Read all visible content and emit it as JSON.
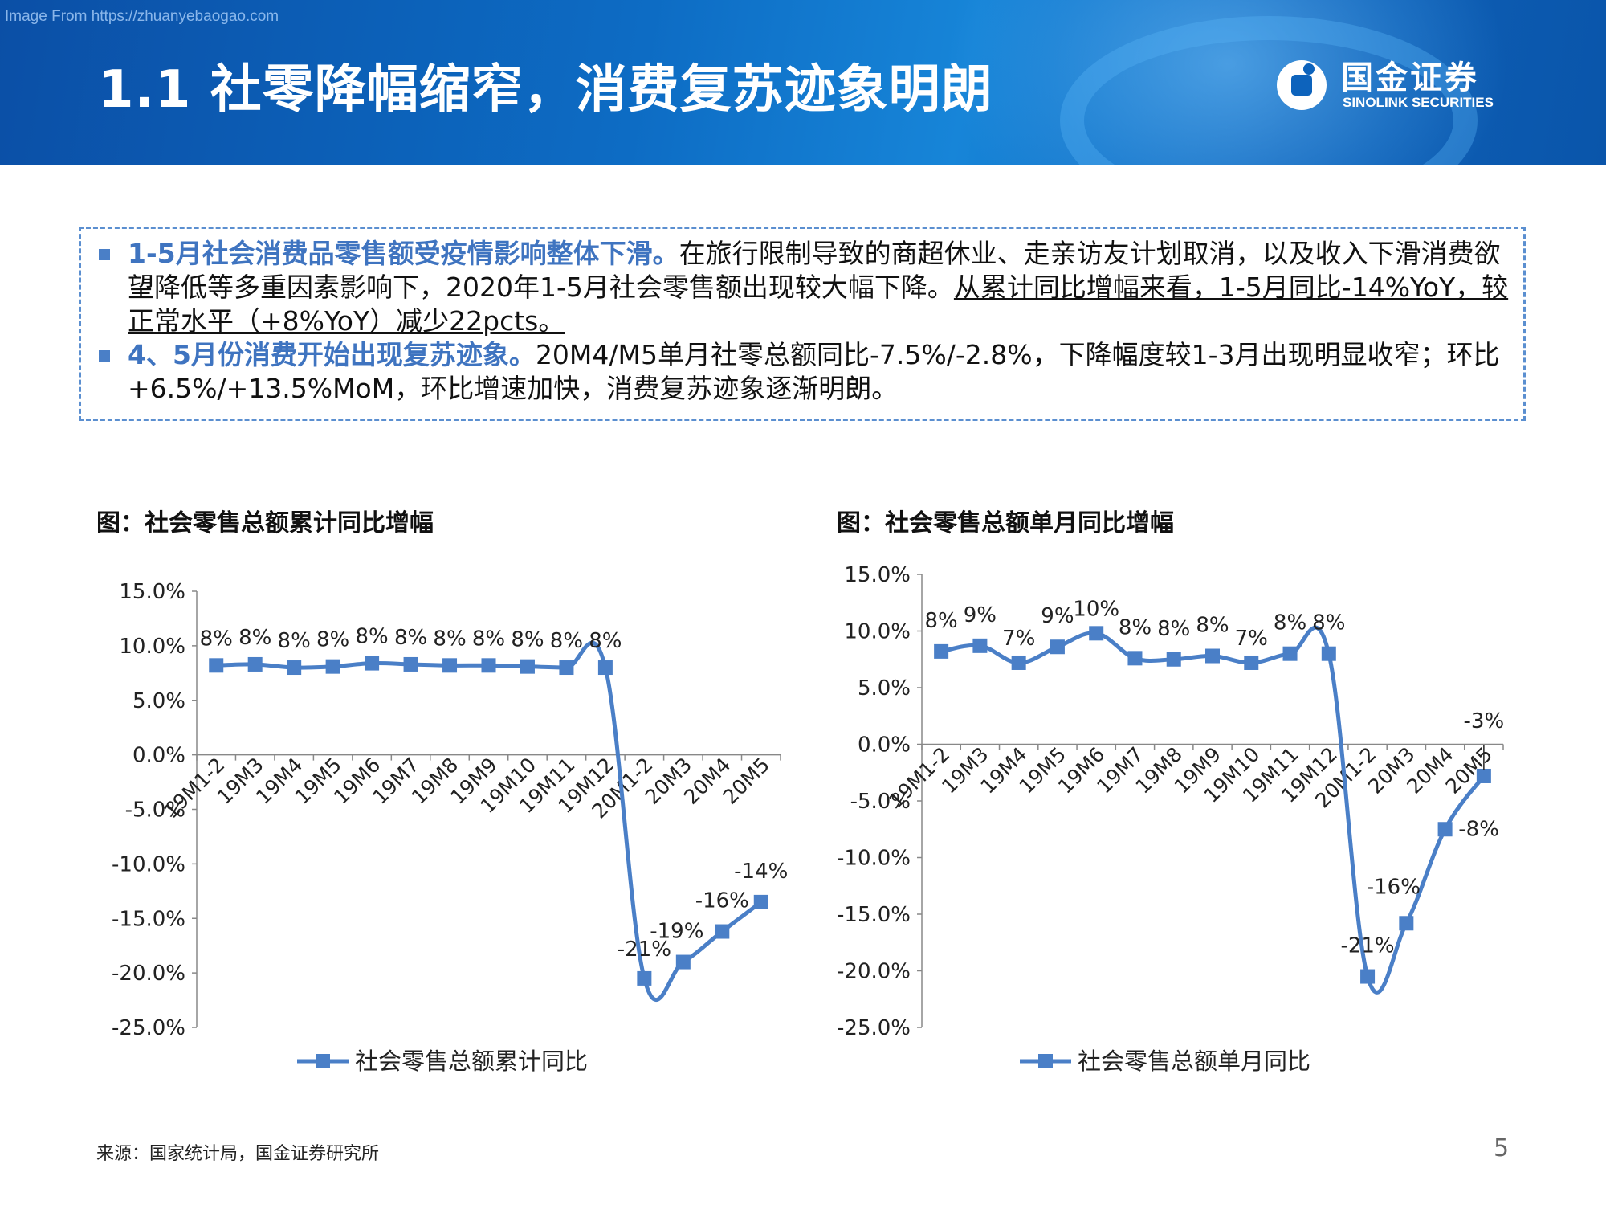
{
  "header": {
    "watermark": "Image From https://zhuanyebaogao.com",
    "title": "1.1 社零降幅缩窄，消费复苏迹象明朗",
    "brand_cn": "国金证券",
    "brand_en": "SINOLINK SECURITIES",
    "brand_logo_icon": "sinolink-logo-icon"
  },
  "summary": {
    "bullet1": {
      "lead": "1-5月社会消费品零售额受疫情影响整体下滑。",
      "body": "在旅行限制导致的商超休业、走亲访友计划取消，以及收入下滑消费欲望降低等多重因素影响下，2020年1-5月社会零售额出现较大幅下降。",
      "underlined": "从累计同比增幅来看，1-5月同比-14%YoY，较正常水平（+8%YoY）减少22pcts。"
    },
    "bullet2": {
      "lead": "4、5月份消费开始出现复苏迹象。",
      "body": "20M4/M5单月社零总额同比-7.5%/-2.8%，下降幅度较1-3月出现明显收窄；环比+6.5%/+13.5%MoM，环比增速加快，消费复苏迹象逐渐明朗。"
    }
  },
  "chart_left_title": "图：社会零售总额累计同比增幅",
  "chart_right_title": "图：社会零售总额单月同比增幅",
  "source": "来源：国家统计局，国金证券研究所",
  "page_number": "5",
  "colors": {
    "series": "#4a7fc7",
    "header_dark": "#0b4fa6",
    "highlight": "#3f74c0",
    "border": "#5b8fd0"
  },
  "chart_data": [
    {
      "type": "line",
      "title": "",
      "categories": [
        "19M1-2",
        "19M3",
        "19M4",
        "19M5",
        "19M6",
        "19M7",
        "19M8",
        "19M9",
        "19M10",
        "19M11",
        "19M12",
        "20M1-2",
        "20M3",
        "20M4",
        "20M5"
      ],
      "series": [
        {
          "name": "社会零售总额累计同比",
          "values": [
            8.2,
            8.3,
            8.0,
            8.1,
            8.4,
            8.3,
            8.2,
            8.2,
            8.1,
            8.0,
            8.0,
            -20.5,
            -19.0,
            -16.2,
            -13.5
          ],
          "labels": [
            "8%",
            "8%",
            "8%",
            "8%",
            "8%",
            "8%",
            "8%",
            "8%",
            "8%",
            "8%",
            "8%",
            "-21%",
            "-19%",
            "-16%",
            "-14%"
          ]
        }
      ],
      "yticks": [
        "15.0%",
        "10.0%",
        "5.0%",
        "0.0%",
        "-5.0%",
        "-10.0%",
        "-15.0%",
        "-20.0%",
        "-25.0%"
      ],
      "ylim": [
        -25,
        15
      ],
      "xlabel": "",
      "ylabel": "",
      "legend": "bottom",
      "grid": false
    },
    {
      "type": "line",
      "title": "",
      "categories": [
        "19M1-2",
        "19M3",
        "19M4",
        "19M5",
        "19M6",
        "19M7",
        "19M8",
        "19M9",
        "19M10",
        "19M11",
        "19M12",
        "20M1-2",
        "20M3",
        "20M4",
        "20M5"
      ],
      "series": [
        {
          "name": "社会零售总额单月同比",
          "values": [
            8.2,
            8.7,
            7.2,
            8.6,
            9.8,
            7.6,
            7.5,
            7.8,
            7.2,
            8.0,
            8.0,
            -20.5,
            -15.8,
            -7.5,
            -2.8
          ],
          "labels": [
            "8%",
            "9%",
            "7%",
            "9%",
            "10%",
            "8%",
            "8%",
            "8%",
            "7%",
            "8%",
            "8%",
            "-21%",
            "-16%",
            "-8%",
            "-3%"
          ]
        }
      ],
      "yticks": [
        "15.0%",
        "10.0%",
        "5.0%",
        "0.0%",
        "-5.0%",
        "-10.0%",
        "-15.0%",
        "-20.0%",
        "-25.0%"
      ],
      "ylim": [
        -25,
        15
      ],
      "xlabel": "",
      "ylabel": "",
      "legend": "bottom",
      "grid": false
    }
  ]
}
